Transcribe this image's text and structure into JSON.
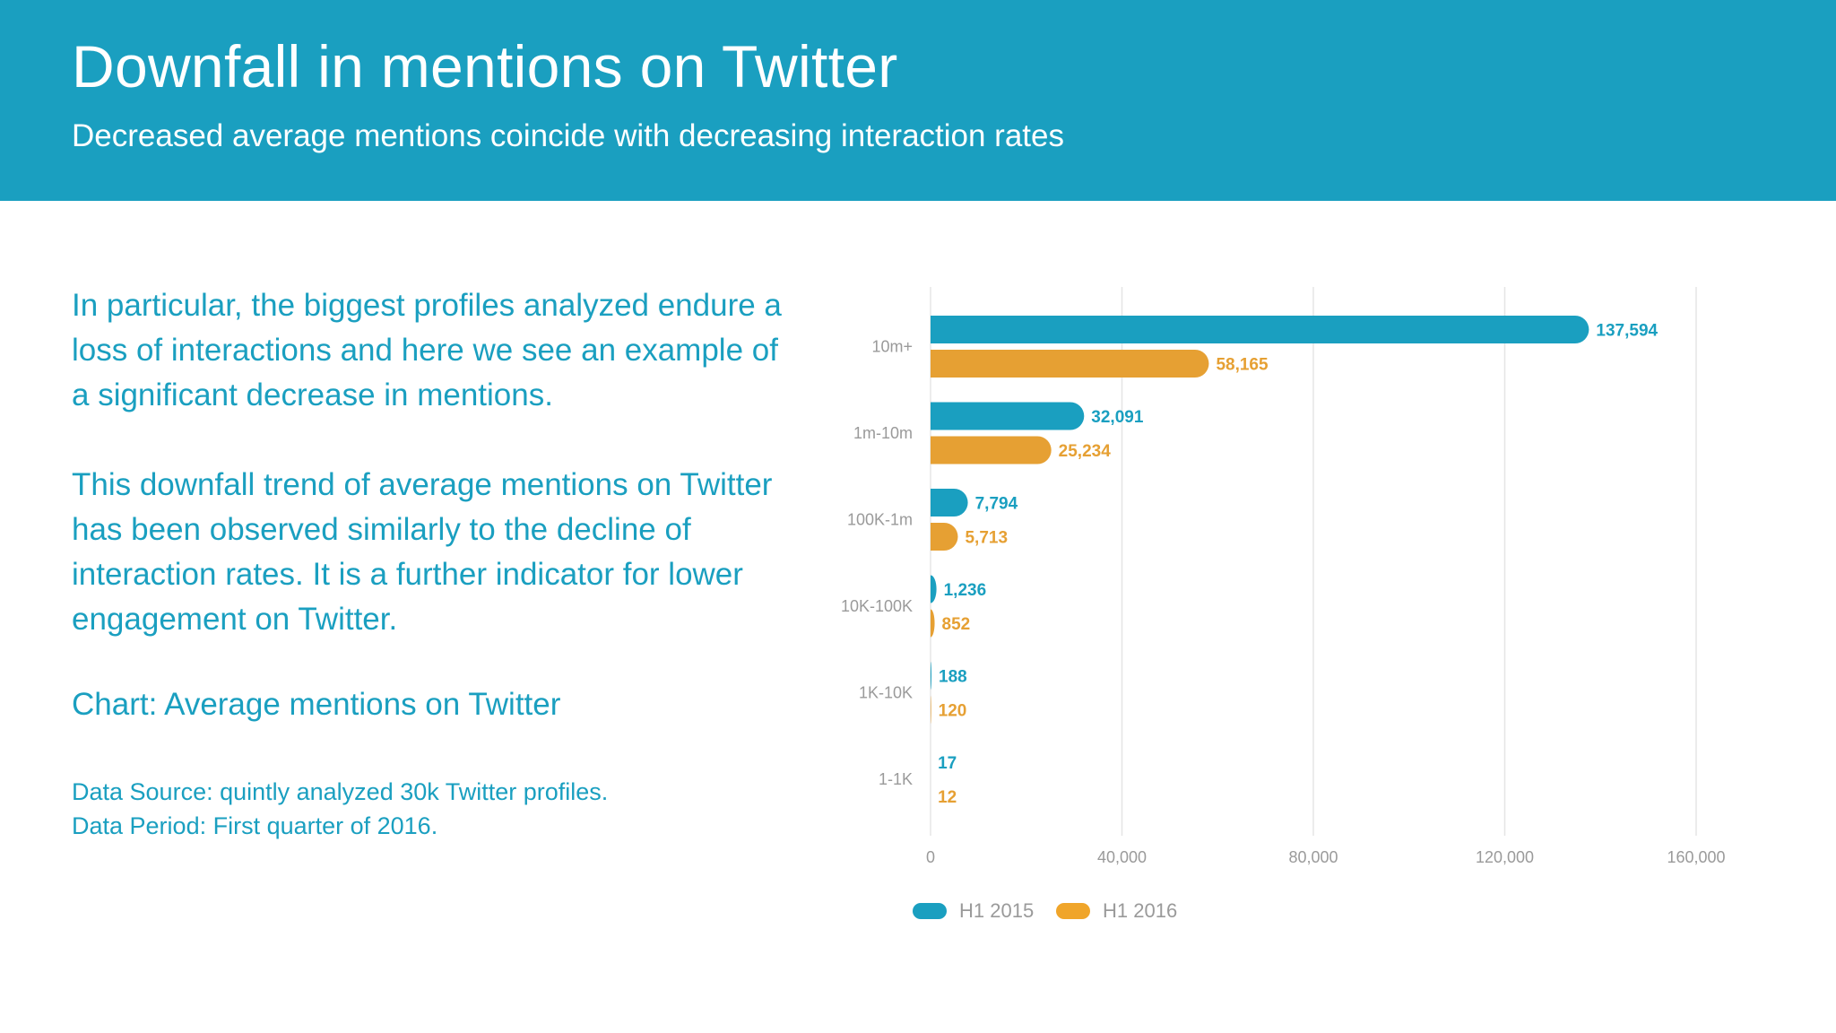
{
  "header": {
    "title": "Downfall in mentions on Twitter",
    "subtitle": "Decreased average mentions coincide with decreasing interaction rates"
  },
  "body": {
    "paragraph1": "In particular, the biggest profiles analyzed endure a loss of interactions and here we see an example of a significant decrease in mentions.",
    "paragraph2": "This downfall trend of average mentions on Twitter has been observed similarly to the decline of interaction rates. It is a further indicator for lower engagement on Twitter.",
    "chart_caption": "Chart: Average mentions on Twitter",
    "source_line1": "Data Source: quintly analyzed 30k Twitter profiles.",
    "source_line2": "Data Period: First quarter of 2016."
  },
  "colors": {
    "header_bg": "#1a9fc0",
    "series_2015": "#1a9fc0",
    "series_2016": "#e6a033",
    "axis_text": "#9a9a9a",
    "grid": "#e5e5e5"
  },
  "chart_data": {
    "type": "bar",
    "orientation": "horizontal",
    "categories": [
      "10m+",
      "1m-10m",
      "100K-1m",
      "10K-100K",
      "1K-10K",
      "1-1K"
    ],
    "series": [
      {
        "name": "H1 2015",
        "values": [
          137594,
          32091,
          7794,
          1236,
          188,
          17
        ],
        "labels": [
          "137,594",
          "32,091",
          "7,794",
          "1,236",
          "188",
          "17"
        ]
      },
      {
        "name": "H1 2016",
        "values": [
          58165,
          25234,
          5713,
          852,
          120,
          12
        ],
        "labels": [
          "58,165",
          "25,234",
          "5,713",
          "852",
          "120",
          "12"
        ]
      }
    ],
    "xlim": [
      0,
      160000
    ],
    "xticks": [
      0,
      40000,
      80000,
      120000,
      160000
    ],
    "xtick_labels": [
      "0",
      "40,000",
      "80,000",
      "120,000",
      "160,000"
    ],
    "grid": true,
    "legend_position": "bottom"
  }
}
